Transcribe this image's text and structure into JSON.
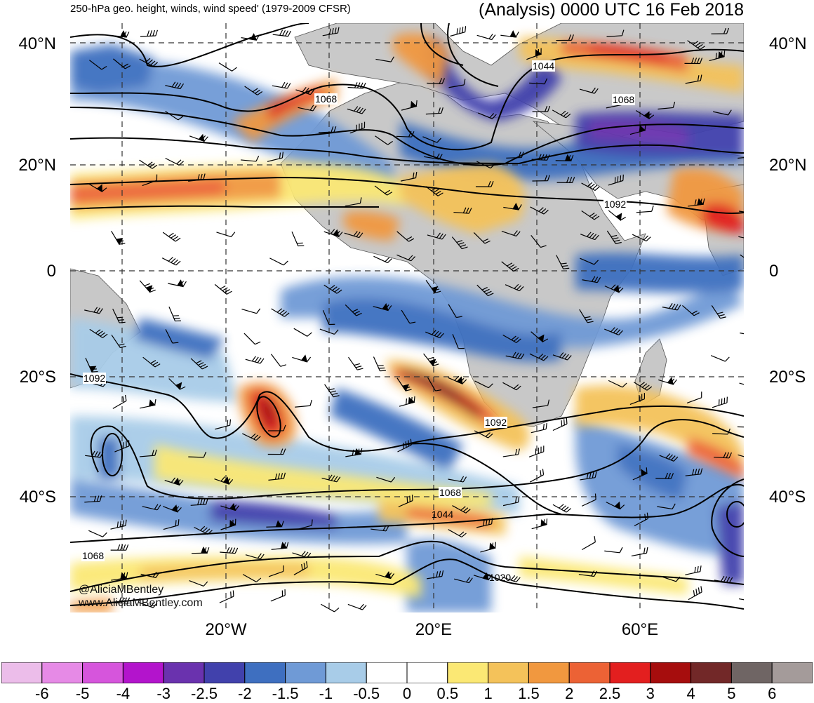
{
  "header": {
    "left": "250-hPa geo. height, winds, wind speed' (1979-2009 CFSR)",
    "right": "(Analysis) 0000 UTC 16 Feb 2018"
  },
  "lat_labels": [
    "40°N",
    "20°N",
    "0",
    "20°S",
    "40°S"
  ],
  "lon_labels": [
    "20°W",
    "20°E",
    "60°E"
  ],
  "contour_labels": [
    "1044",
    "1068",
    "1068",
    "1092",
    "1092",
    "1092",
    "1068",
    "1044",
    "1068",
    "1020"
  ],
  "credit": {
    "handle": "@AliciaMBentley",
    "site": "www.AliciaMBentley.com"
  },
  "colorbar": {
    "colors": [
      "#ecbdea",
      "#e68ae6",
      "#d655dc",
      "#b314cc",
      "#6a32ae",
      "#4141ac",
      "#3e6fc0",
      "#6f9ad6",
      "#a8cce8",
      "#ffffff",
      "#ffffff",
      "#fbe874",
      "#f4c25a",
      "#f1983f",
      "#ec6235",
      "#e31f1f",
      "#a60d0d",
      "#722828",
      "#6f6564",
      "#a49b9a"
    ],
    "labels": [
      "-6",
      "-5",
      "-4",
      "-3",
      "-2.5",
      "-2",
      "-1.5",
      "-1",
      "-0.5",
      "0",
      "0.5",
      "1",
      "1.5",
      "2",
      "2.5",
      "3",
      "4",
      "5",
      "6"
    ]
  },
  "colors": {
    "land": "#c8c8c8",
    "contour": "#000000",
    "grid": "#333333"
  }
}
